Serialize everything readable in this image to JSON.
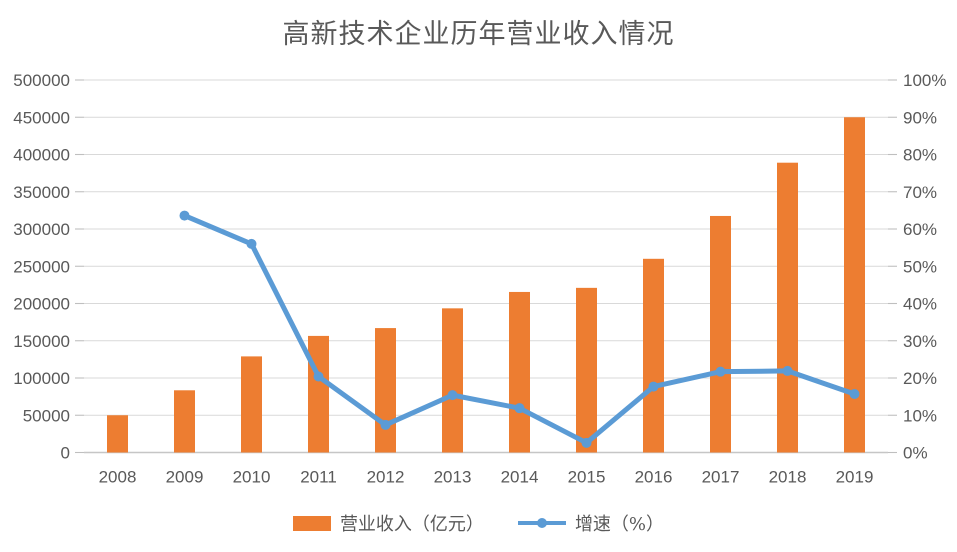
{
  "chart_data": {
    "type": "bar+line",
    "title": "高新技术企业历年营业收入情况",
    "categories": [
      "2008",
      "2009",
      "2010",
      "2011",
      "2012",
      "2013",
      "2014",
      "2015",
      "2016",
      "2017",
      "2018",
      "2019"
    ],
    "series": [
      {
        "name": "营业收入（亿元）",
        "type": "bar",
        "axis": "left",
        "color": "#ED7D31",
        "values": [
          50000,
          83500,
          129000,
          156500,
          167000,
          193500,
          215500,
          221000,
          260000,
          317500,
          389000,
          450000
        ]
      },
      {
        "name": "增速（%）",
        "type": "line",
        "axis": "right",
        "color": "#5B9BD5",
        "values": [
          null,
          63.6,
          56.0,
          20.4,
          7.4,
          15.4,
          11.9,
          2.6,
          17.7,
          21.7,
          21.9,
          15.7
        ]
      }
    ],
    "left_axis": {
      "min": 0,
      "max": 500000,
      "step": 50000,
      "tick_labels": [
        "0",
        "50000",
        "100000",
        "150000",
        "200000",
        "250000",
        "300000",
        "350000",
        "400000",
        "450000",
        "500000"
      ]
    },
    "right_axis": {
      "min": 0,
      "max": 100,
      "step": 10,
      "tick_labels": [
        "0%",
        "10%",
        "20%",
        "30%",
        "40%",
        "50%",
        "60%",
        "70%",
        "80%",
        "90%",
        "100%"
      ]
    },
    "grid": true,
    "legend_position": "bottom",
    "colors": {
      "grid": "#D9D9D9",
      "tick": "#BFBFBF",
      "axis_line": "#C6C6C6",
      "text": "#595959"
    }
  }
}
